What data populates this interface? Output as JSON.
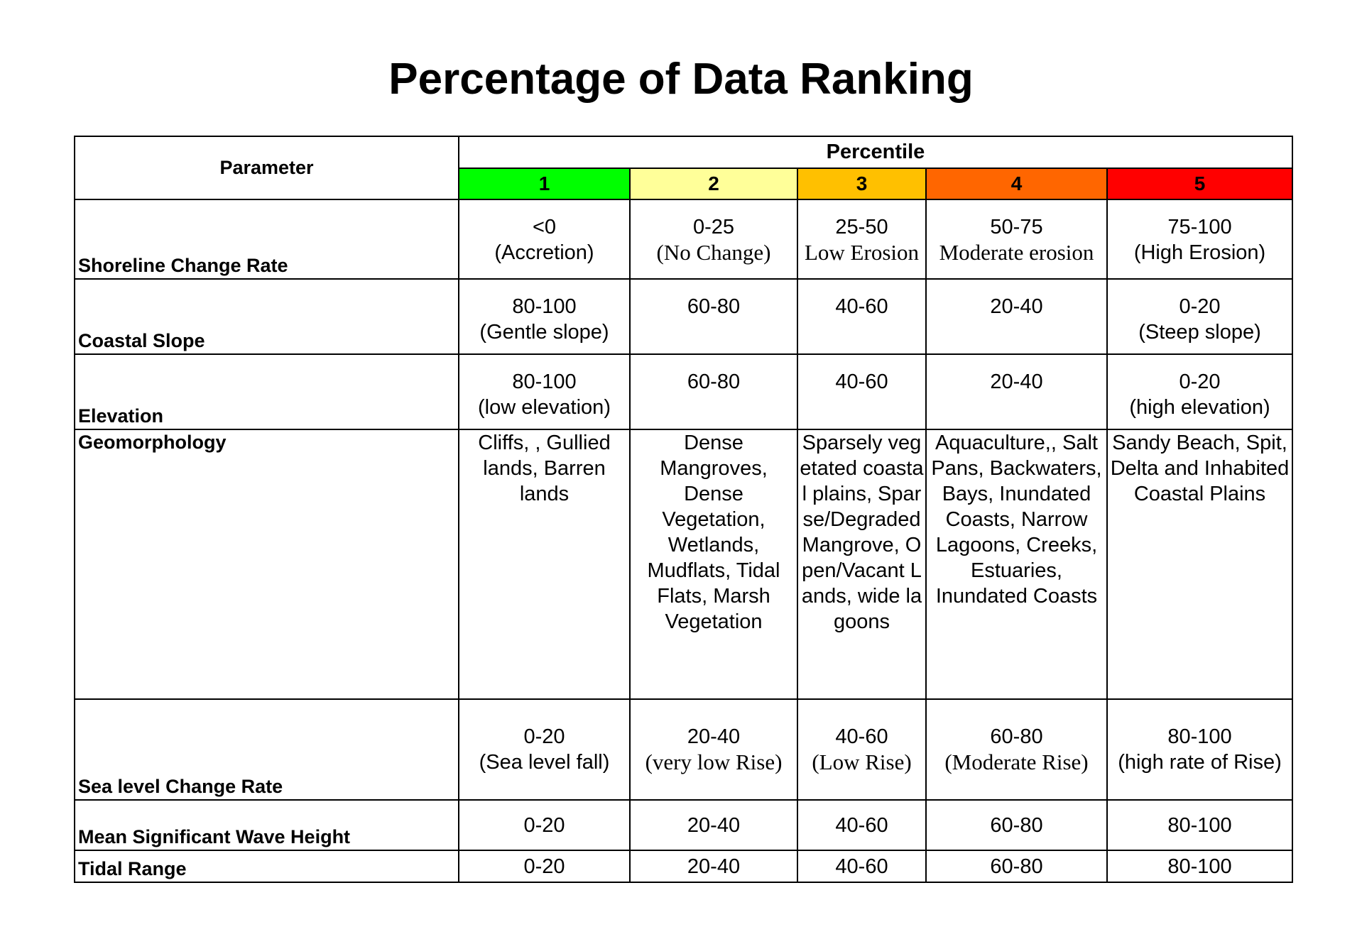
{
  "title": "Percentage of Data Ranking",
  "header": {
    "parameter": "Parameter",
    "percentile": "Percentile",
    "levels": [
      {
        "label": "1",
        "color": "#00ff00"
      },
      {
        "label": "2",
        "color": "#ffff99"
      },
      {
        "label": "3",
        "color": "#ffc000"
      },
      {
        "label": "4",
        "color": "#ff6600"
      },
      {
        "label": "5",
        "color": "#ff0000"
      }
    ]
  },
  "rows": [
    {
      "parameter": "Shoreline Change Rate",
      "cells": [
        {
          "l1": "<0",
          "l2": "(Accretion)"
        },
        {
          "l1": "0-25",
          "l2": "(No Change)"
        },
        {
          "l1": "25-50",
          "l2": "Low Erosion"
        },
        {
          "l1": "50-75",
          "l2": "Moderate erosion"
        },
        {
          "l1": "75-100",
          "l2": "(High Erosion)"
        }
      ]
    },
    {
      "parameter": "Coastal Slope",
      "cells": [
        {
          "l1": "80-100",
          "l2": "(Gentle slope)"
        },
        {
          "l1": "60-80",
          "l2": ""
        },
        {
          "l1": "40-60",
          "l2": ""
        },
        {
          "l1": "20-40",
          "l2": ""
        },
        {
          "l1": "0-20",
          "l2": "(Steep slope)"
        }
      ]
    },
    {
      "parameter": "Elevation",
      "cells": [
        {
          "l1": "80-100",
          "l2": "(low elevation)"
        },
        {
          "l1": "60-80",
          "l2": ""
        },
        {
          "l1": "40-60",
          "l2": ""
        },
        {
          "l1": "20-40",
          "l2": ""
        },
        {
          "l1": "0-20",
          "l2": "(high elevation)"
        }
      ]
    },
    {
      "parameter": "Geomorphology",
      "cells": [
        "Cliffs, , Gullied lands, Barren lands",
        "Dense Mangroves, Dense Vegetation, Wetlands, Mudflats, Tidal Flats, Marsh Vegetation",
        "Sparsely vegetated coastal plains, Sparse/Degraded Mangrove, Open/Vacant Lands, wide lagoons",
        "Aquaculture,, Salt Pans, Backwaters, Bays, Inundated Coasts, Narrow Lagoons, Creeks, Estuaries, Inundated Coasts",
        "Sandy Beach, Spit, Delta and Inhabited Coastal Plains"
      ]
    },
    {
      "parameter": "Sea level Change Rate",
      "cells": [
        {
          "l1": "0-20",
          "l2": "(Sea level fall)"
        },
        {
          "l1": "20-40",
          "l2": "(very low Rise)"
        },
        {
          "l1": "40-60",
          "l2": "(Low Rise)"
        },
        {
          "l1": "60-80",
          "l2": "(Moderate Rise)"
        },
        {
          "l1": "80-100",
          "l2": "(high rate of Rise)"
        }
      ]
    },
    {
      "parameter": "Mean Significant Wave Height",
      "cells": [
        "0-20",
        "20-40",
        "40-60",
        "60-80",
        "80-100"
      ]
    },
    {
      "parameter": "Tidal Range",
      "cells": [
        "0-20",
        "20-40",
        "40-60",
        "60-80",
        "80-100"
      ]
    }
  ]
}
